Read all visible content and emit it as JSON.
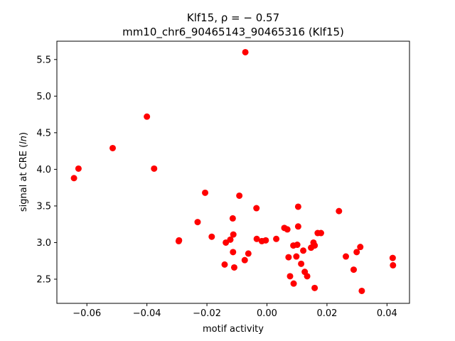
{
  "chart_data": {
    "type": "scatter",
    "title_line1": "Klf15, ρ = − 0.57",
    "title_line2": "mm10_chr6_90465143_90465316 (Klf15)",
    "xlabel": "motif activity",
    "ylabel_main": "signal at CRE (",
    "ylabel_italic": "ln",
    "ylabel_end": ")",
    "xlim": [
      -0.07,
      0.0475
    ],
    "ylim": [
      2.17,
      5.75
    ],
    "xticks": [
      -0.06,
      -0.04,
      -0.02,
      0.0,
      0.02,
      0.04
    ],
    "xtick_labels": [
      "−0.06",
      "−0.04",
      "−0.02",
      "0.00",
      "0.02",
      "0.04"
    ],
    "yticks": [
      2.5,
      3.0,
      3.5,
      4.0,
      4.5,
      5.0,
      5.5
    ],
    "ytick_labels": [
      "2.5",
      "3.0",
      "3.5",
      "4.0",
      "4.5",
      "5.0",
      "5.5"
    ],
    "marker_color": "#ff0000",
    "points": [
      {
        "x": -0.0643,
        "y": 3.88
      },
      {
        "x": -0.0628,
        "y": 4.01
      },
      {
        "x": -0.0514,
        "y": 4.29
      },
      {
        "x": -0.04,
        "y": 4.72
      },
      {
        "x": -0.0376,
        "y": 4.01
      },
      {
        "x": -0.0294,
        "y": 3.02
      },
      {
        "x": -0.0293,
        "y": 3.03
      },
      {
        "x": -0.0231,
        "y": 3.28
      },
      {
        "x": -0.0206,
        "y": 3.68
      },
      {
        "x": -0.0184,
        "y": 3.08
      },
      {
        "x": -0.0141,
        "y": 2.7
      },
      {
        "x": -0.0137,
        "y": 3.0
      },
      {
        "x": -0.0122,
        "y": 3.04
      },
      {
        "x": -0.0114,
        "y": 3.33
      },
      {
        "x": -0.0113,
        "y": 2.87
      },
      {
        "x": -0.0112,
        "y": 3.11
      },
      {
        "x": -0.0109,
        "y": 2.66
      },
      {
        "x": -0.0092,
        "y": 3.64
      },
      {
        "x": -0.0074,
        "y": 2.76
      },
      {
        "x": -0.0072,
        "y": 5.6
      },
      {
        "x": -0.0062,
        "y": 2.85
      },
      {
        "x": -0.0035,
        "y": 3.47
      },
      {
        "x": -0.0034,
        "y": 3.05
      },
      {
        "x": -0.0017,
        "y": 3.02
      },
      {
        "x": -0.0004,
        "y": 3.03
      },
      {
        "x": 0.0031,
        "y": 3.05
      },
      {
        "x": 0.0058,
        "y": 3.2
      },
      {
        "x": 0.0068,
        "y": 3.18
      },
      {
        "x": 0.0072,
        "y": 2.8
      },
      {
        "x": 0.0077,
        "y": 2.54
      },
      {
        "x": 0.0088,
        "y": 2.96
      },
      {
        "x": 0.0089,
        "y": 2.44
      },
      {
        "x": 0.0098,
        "y": 2.81
      },
      {
        "x": 0.0101,
        "y": 2.97
      },
      {
        "x": 0.0104,
        "y": 3.22
      },
      {
        "x": 0.0104,
        "y": 3.49
      },
      {
        "x": 0.0114,
        "y": 2.71
      },
      {
        "x": 0.0121,
        "y": 2.89
      },
      {
        "x": 0.0126,
        "y": 2.6
      },
      {
        "x": 0.0134,
        "y": 2.54
      },
      {
        "x": 0.0147,
        "y": 2.93
      },
      {
        "x": 0.0155,
        "y": 3.0
      },
      {
        "x": 0.0159,
        "y": 2.96
      },
      {
        "x": 0.0159,
        "y": 2.38
      },
      {
        "x": 0.0169,
        "y": 3.13
      },
      {
        "x": 0.018,
        "y": 3.13
      },
      {
        "x": 0.024,
        "y": 3.43
      },
      {
        "x": 0.0263,
        "y": 2.81
      },
      {
        "x": 0.0289,
        "y": 2.63
      },
      {
        "x": 0.0299,
        "y": 2.87
      },
      {
        "x": 0.0311,
        "y": 2.94
      },
      {
        "x": 0.0316,
        "y": 2.34
      },
      {
        "x": 0.0419,
        "y": 2.79
      },
      {
        "x": 0.042,
        "y": 2.69
      }
    ]
  }
}
